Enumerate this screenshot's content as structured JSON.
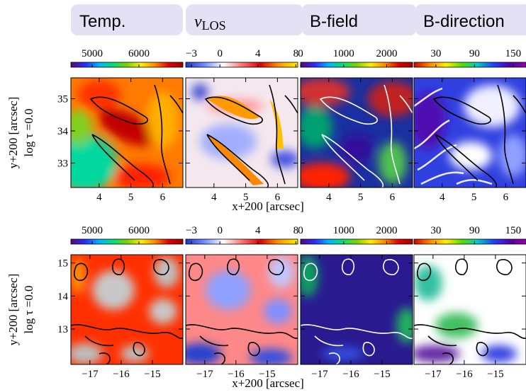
{
  "tabs": [
    {
      "label": "Temp."
    },
    {
      "label": "v",
      "subscript": "LOS"
    },
    {
      "label": "B-field"
    },
    {
      "label": "B-direction"
    }
  ],
  "rows": [
    {
      "ylabel": "y+200 [arcsec]",
      "ylabel2": "log τ =0.0",
      "xlabel": "x+200 [arcsec]",
      "xlim": [
        3.11,
        6.64
      ],
      "ylim": [
        32.24,
        35.65
      ],
      "xticks": [
        4,
        5,
        6
      ],
      "yticks": [
        33,
        34,
        35
      ],
      "colorbars": [
        {
          "lim": [
            4545,
            6940
          ],
          "ticks": [
            5000,
            6000
          ],
          "colors": [
            "#5a0a6e",
            "#2a2aff",
            "#00b4ff",
            "#00e07a",
            "#7ad200",
            "#ffee00",
            "#ff8a00",
            "#e00000",
            "#a00000"
          ]
        },
        {
          "lim": [
            -3.6,
            8.2
          ],
          "ticks": [
            {
              "value": -3,
              "label": "−3"
            },
            0,
            4,
            8
          ],
          "colors": [
            "#2233cc",
            "#6f8cff",
            "#ffffff",
            "#ff7777",
            "#dd0000",
            "#ff9900",
            "#ffee00"
          ]
        },
        {
          "lim": [
            0,
            2600
          ],
          "ticks": [
            0,
            1000,
            2000
          ],
          "colors": [
            "#5a0a6e",
            "#2a2aff",
            "#00b4ff",
            "#00e07a",
            "#7ad200",
            "#ffee00",
            "#ff8a00",
            "#e00000",
            "#a00000"
          ]
        },
        {
          "lim": [
            -4,
            170
          ],
          "ticks": [
            30,
            90,
            150
          ],
          "colors": [
            "#d40000",
            "#ff8800",
            "#ffee00",
            "#55dd00",
            "#00c8c8",
            "#2040ff",
            "#5500aa",
            "#9900aa"
          ]
        }
      ]
    },
    {
      "ylabel": "y+200 [arcsec]",
      "ylabel2": "log τ =0.0",
      "xlabel": "x+200 [arcsec]",
      "xlim": [
        -17.61,
        -14.02
      ],
      "ylim": [
        11.93,
        15.25
      ],
      "xticks": [
        {
          "value": -17,
          "label": "−17"
        },
        {
          "value": -16,
          "label": "−16"
        },
        {
          "value": -15,
          "label": "−15"
        }
      ],
      "yticks": [
        13,
        14,
        15
      ],
      "colorbars": [
        {
          "lim": [
            4545,
            6940
          ],
          "ticks": [
            5000,
            6000
          ],
          "colors": [
            "#5a0a6e",
            "#2a2aff",
            "#00b4ff",
            "#00e07a",
            "#7ad200",
            "#ffee00",
            "#ff8a00",
            "#e00000",
            "#a00000"
          ]
        },
        {
          "lim": [
            -3.6,
            8.2
          ],
          "ticks": [
            {
              "value": -3,
              "label": "−3"
            },
            0,
            4,
            8
          ],
          "colors": [
            "#2233cc",
            "#6f8cff",
            "#ffffff",
            "#ff7777",
            "#dd0000",
            "#ff9900",
            "#ffee00"
          ]
        },
        {
          "lim": [
            0,
            2600
          ],
          "ticks": [
            0,
            1000,
            2000
          ],
          "colors": [
            "#5a0a6e",
            "#2a2aff",
            "#00b4ff",
            "#00e07a",
            "#7ad200",
            "#ffee00",
            "#ff8a00",
            "#e00000",
            "#a00000"
          ]
        },
        {
          "lim": [
            -4,
            170
          ],
          "ticks": [
            30,
            90,
            150
          ],
          "colors": [
            "#d40000",
            "#ff8800",
            "#ffee00",
            "#55dd00",
            "#00c8c8",
            "#2040ff",
            "#5500aa",
            "#9900aa"
          ]
        }
      ]
    }
  ]
}
